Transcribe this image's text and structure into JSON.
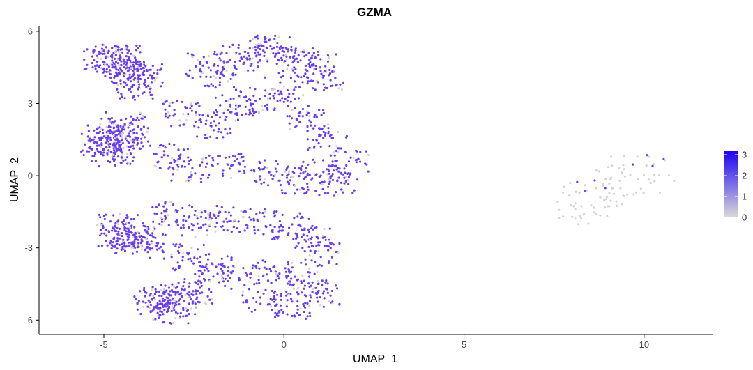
{
  "chart_data": {
    "type": "scatter",
    "title": "GZMA",
    "xlabel": "UMAP_1",
    "ylabel": "UMAP_2",
    "xlim": [
      -6.8,
      11.9
    ],
    "ylim": [
      -6.6,
      6.2
    ],
    "x_ticks": [
      -5,
      0,
      5,
      10
    ],
    "x_tick_labels": [
      "-5",
      "0",
      "5",
      "10"
    ],
    "y_ticks": [
      -6,
      -3,
      0,
      3,
      6
    ],
    "y_tick_labels": [
      "-6",
      "-3",
      "0",
      "3",
      "6"
    ],
    "grid": false,
    "legend": {
      "placement": "right",
      "type": "colorbar",
      "range": [
        0,
        3.2
      ],
      "breaks": [
        0,
        1,
        2,
        3
      ],
      "break_labels": [
        "0",
        "1",
        "2",
        "3"
      ],
      "low_color": "#d9d9d9",
      "high_color": "#1c00f2"
    },
    "point_color_expressing": "#6a3df0",
    "point_color_zero": "#d3d3d3",
    "clusters": [
      {
        "name_hint": "main",
        "approx_points": 2900,
        "expression_mean": 1.6
      },
      {
        "name_hint": "right",
        "approx_points": 420,
        "expression_mean": 0.15
      }
    ],
    "series": [
      {
        "values": [
          [
            -5.0,
            4.7
          ],
          [
            -4.8,
            4.9
          ],
          [
            -4.6,
            4.6
          ],
          [
            -4.5,
            4.9
          ],
          [
            -4.4,
            4.4
          ],
          [
            -4.2,
            4.1
          ],
          [
            -4.1,
            3.7
          ],
          [
            -3.9,
            4.2
          ],
          [
            -5.1,
            1.3
          ],
          [
            -4.9,
            1.1
          ],
          [
            -4.8,
            1.5
          ],
          [
            -4.6,
            1.9
          ],
          [
            -4.4,
            2.1
          ],
          [
            -4.3,
            1.6
          ],
          [
            -4.7,
            0.9
          ],
          [
            -5.0,
            1.6
          ],
          [
            -4.6,
            -2.1
          ],
          [
            -4.4,
            -2.5
          ],
          [
            -4.7,
            -2.4
          ],
          [
            -4.2,
            -2.7
          ],
          [
            -4.0,
            -2.6
          ],
          [
            -3.8,
            -2.9
          ],
          [
            -3.4,
            -5.0
          ],
          [
            -3.0,
            -5.3
          ],
          [
            -3.2,
            -5.6
          ],
          [
            -2.8,
            -5.1
          ],
          [
            -3.6,
            -5.2
          ],
          [
            -2.5,
            -4.8
          ],
          [
            -2.2,
            4.6
          ],
          [
            -1.8,
            4.2
          ],
          [
            -1.2,
            4.9
          ],
          [
            -0.6,
            5.3
          ],
          [
            -0.2,
            5.2
          ],
          [
            0.4,
            4.8
          ],
          [
            0.9,
            4.6
          ],
          [
            1.1,
            4.1
          ],
          [
            -2.8,
            2.6
          ],
          [
            -2.0,
            2.1
          ],
          [
            -1.4,
            2.8
          ],
          [
            -0.8,
            3.1
          ],
          [
            0.0,
            3.6
          ],
          [
            0.6,
            2.4
          ],
          [
            1.2,
            1.6
          ],
          [
            1.8,
            0.6
          ],
          [
            -3.2,
            0.8
          ],
          [
            -2.6,
            0.2
          ],
          [
            -1.6,
            0.4
          ],
          [
            -0.4,
            0.1
          ],
          [
            0.4,
            -0.2
          ],
          [
            1.0,
            0.2
          ],
          [
            1.5,
            -0.4
          ],
          [
            -3.1,
            -1.6
          ],
          [
            -2.4,
            -2.0
          ],
          [
            -1.6,
            -1.8
          ],
          [
            -0.6,
            -1.9
          ],
          [
            0.2,
            -2.1
          ],
          [
            0.8,
            -2.6
          ],
          [
            1.0,
            -3.2
          ],
          [
            -2.6,
            -3.4
          ],
          [
            -2.0,
            -3.9
          ],
          [
            -1.2,
            -4.2
          ],
          [
            -0.2,
            -4.0
          ],
          [
            0.6,
            -4.4
          ],
          [
            1.0,
            -4.9
          ],
          [
            0.2,
            -5.4
          ],
          [
            -0.6,
            -5.3
          ],
          [
            7.6,
            -1.1
          ],
          [
            8.0,
            -1.4
          ],
          [
            8.2,
            -0.7
          ],
          [
            8.6,
            -0.3
          ],
          [
            9.0,
            0.1
          ],
          [
            9.4,
            0.4
          ],
          [
            9.8,
            0.6
          ],
          [
            10.2,
            0.3
          ],
          [
            10.6,
            0.0
          ],
          [
            10.0,
            -0.4
          ],
          [
            9.6,
            -0.8
          ],
          [
            9.2,
            -1.1
          ],
          [
            8.8,
            -1.3
          ],
          [
            8.4,
            -1.6
          ],
          [
            9.0,
            -0.6
          ],
          [
            8.6,
            -0.9
          ]
        ]
      }
    ]
  }
}
